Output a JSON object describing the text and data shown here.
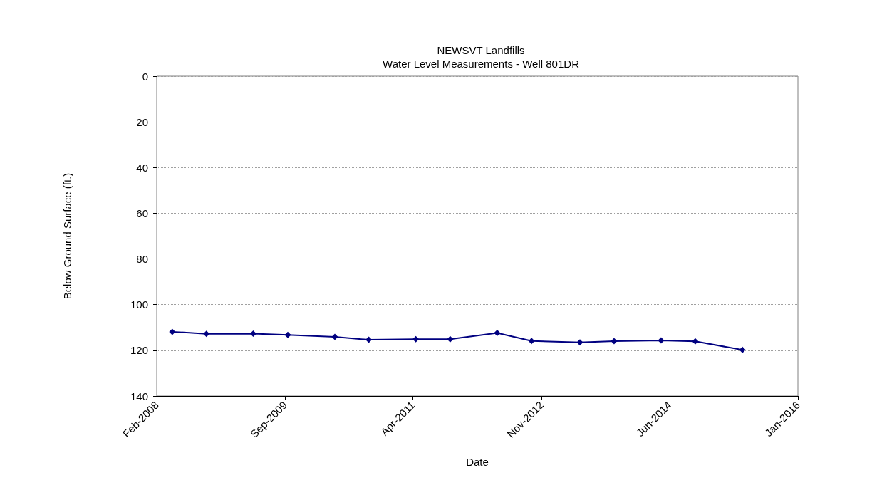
{
  "chart_data": {
    "type": "line",
    "title": "NEWSVT Landfills",
    "subtitle": "Water Level Measurements - Well 801DR",
    "xlabel": "Date",
    "ylabel": "Below Ground Surface (ft.)",
    "x": [
      "2008-04-11",
      "2008-09-12",
      "2009-04-11",
      "2009-09-14",
      "2010-04-14",
      "2010-09-14",
      "2011-04-14",
      "2011-09-16",
      "2012-04-15",
      "2012-09-17",
      "2013-04-23",
      "2013-09-24",
      "2014-04-24",
      "2014-09-25",
      "2015-04-26"
    ],
    "series": [
      {
        "color": "#000080",
        "values": [
          111.9,
          112.8,
          112.7,
          113.3,
          114.1,
          115.4,
          115.1,
          115.1,
          112.4,
          115.9,
          116.5,
          116.0,
          115.7,
          116.1,
          119.8
        ]
      }
    ],
    "xlim": [
      "2008-02-01",
      "2016-01-01"
    ],
    "xticks": [
      {
        "value": "2008-02-01",
        "label": "Feb-2008"
      },
      {
        "value": "2009-09-01",
        "label": "Sep-2009"
      },
      {
        "value": "2011-04-01",
        "label": "Apr-2011"
      },
      {
        "value": "2012-11-01",
        "label": "Nov-2012"
      },
      {
        "value": "2014-06-01",
        "label": "Jun-2014"
      },
      {
        "value": "2016-01-01",
        "label": "Jan-2016"
      }
    ],
    "ylim": [
      140,
      0
    ],
    "yticks": [
      0,
      20,
      40,
      60,
      80,
      100,
      120,
      140
    ],
    "grid": "y",
    "marker": "diamond",
    "line_style": "solid"
  }
}
